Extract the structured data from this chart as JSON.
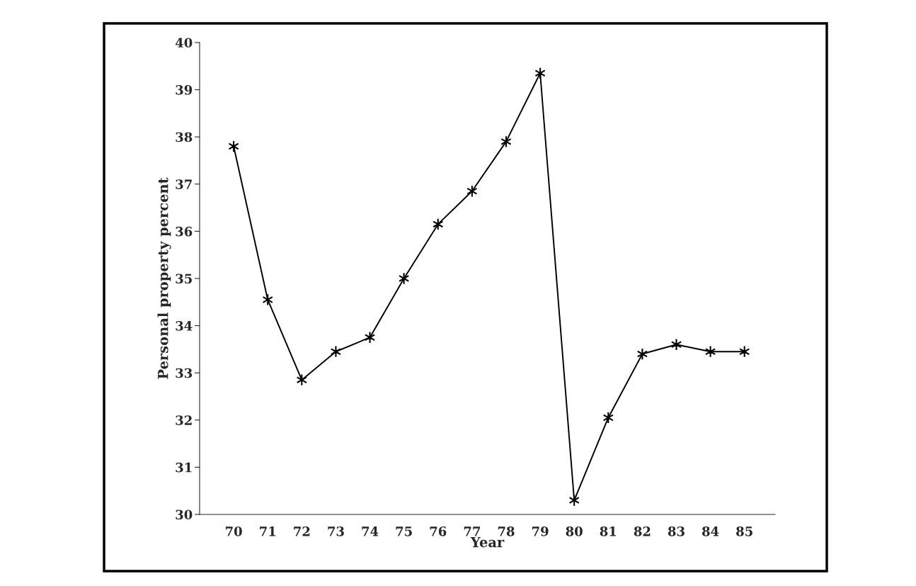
{
  "chart_data": {
    "type": "line",
    "xlabel": "Year",
    "ylabel": "Personal property percent",
    "categories": [
      "70",
      "71",
      "72",
      "73",
      "74",
      "75",
      "76",
      "77",
      "78",
      "79",
      "80",
      "81",
      "82",
      "83",
      "84",
      "85"
    ],
    "series": [
      {
        "color": "#000000",
        "values": [
          37.8,
          34.55,
          32.85,
          33.45,
          33.75,
          35.0,
          36.15,
          36.85,
          37.9,
          39.35,
          30.3,
          32.05,
          33.4,
          33.6,
          33.45,
          33.45
        ]
      }
    ],
    "ylim": [
      30,
      40
    ],
    "yticks": [
      30,
      31,
      32,
      33,
      34,
      35,
      36,
      37,
      38,
      39,
      40
    ],
    "marker": "cross",
    "line_style": "solid",
    "grid": false
  }
}
